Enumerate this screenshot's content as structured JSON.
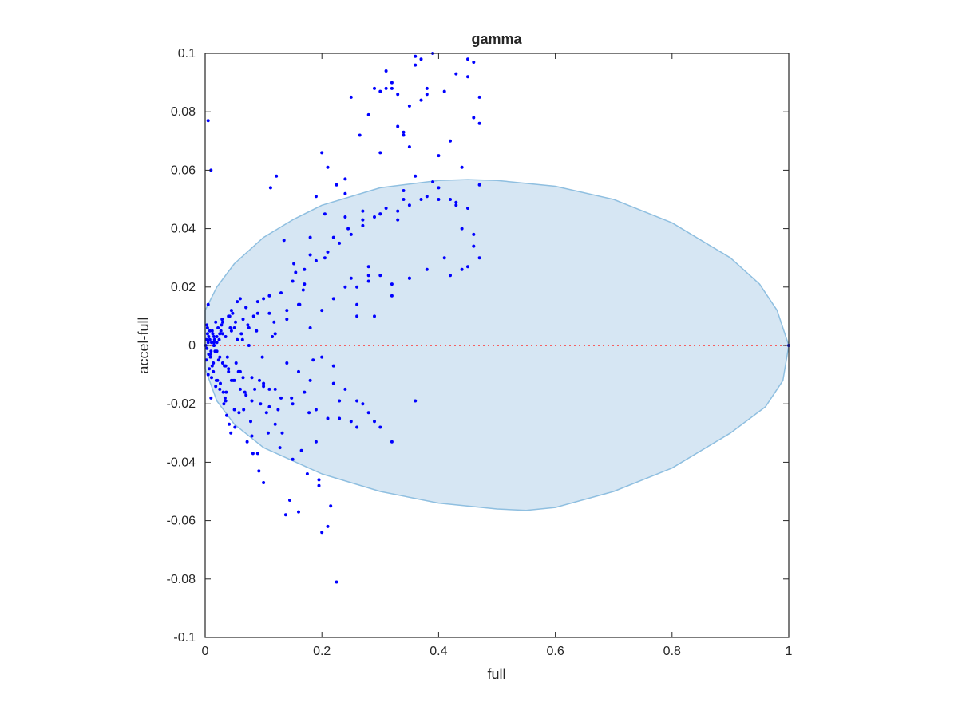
{
  "chart_data": {
    "type": "scatter",
    "title": "gamma",
    "xlabel": "full",
    "ylabel": "accel-full",
    "xlim": [
      0,
      1
    ],
    "ylim": [
      -0.1,
      0.1
    ],
    "grid": false,
    "xticks": [
      0,
      0.2,
      0.4,
      0.6,
      0.8,
      1
    ],
    "xtick_labels": [
      "0",
      "0.2",
      "0.4",
      "0.6",
      "0.8",
      "1"
    ],
    "yticks": [
      -0.1,
      -0.08,
      -0.06,
      -0.04,
      -0.02,
      0,
      0.02,
      0.04,
      0.06,
      0.08,
      0.1
    ],
    "ytick_labels": [
      "-0.1",
      "-0.08",
      "-0.06",
      "-0.04",
      "-0.02",
      "0",
      "0.02",
      "0.04",
      "0.06",
      "0.08",
      "0.1"
    ],
    "colors": {
      "points": "#0000ff",
      "reference_line": "#ff3333",
      "ellipse_fill": "#d6e6f3",
      "ellipse_edge": "#8fbfe0",
      "axes": "#262626"
    },
    "reference_line": {
      "y": 0,
      "x_range": [
        0,
        1
      ],
      "style": "dotted"
    },
    "ellipse": {
      "points": [
        [
          0.0,
          0.012
        ],
        [
          0.02,
          0.02
        ],
        [
          0.05,
          0.028
        ],
        [
          0.1,
          0.037
        ],
        [
          0.15,
          0.043
        ],
        [
          0.2,
          0.048
        ],
        [
          0.3,
          0.054
        ],
        [
          0.4,
          0.0565
        ],
        [
          0.45,
          0.0568
        ],
        [
          0.5,
          0.0565
        ],
        [
          0.6,
          0.0545
        ],
        [
          0.7,
          0.05
        ],
        [
          0.8,
          0.042
        ],
        [
          0.9,
          0.03
        ],
        [
          0.95,
          0.021
        ],
        [
          0.98,
          0.012
        ],
        [
          1.0,
          0.0
        ],
        [
          0.99,
          -0.012
        ],
        [
          0.96,
          -0.021
        ],
        [
          0.9,
          -0.03
        ],
        [
          0.8,
          -0.042
        ],
        [
          0.7,
          -0.05
        ],
        [
          0.6,
          -0.0555
        ],
        [
          0.55,
          -0.0565
        ],
        [
          0.5,
          -0.056
        ],
        [
          0.4,
          -0.054
        ],
        [
          0.3,
          -0.05
        ],
        [
          0.2,
          -0.044
        ],
        [
          0.1,
          -0.035
        ],
        [
          0.05,
          -0.027
        ],
        [
          0.02,
          -0.019
        ],
        [
          0.0,
          -0.008
        ]
      ]
    },
    "series": [
      {
        "x": [
          0.001,
          0.002,
          0.003,
          0.004,
          0.005,
          0.006,
          0.008,
          0.01,
          0.012,
          0.015,
          0.002,
          0.004,
          0.006,
          0.009,
          0.011,
          0.014,
          0.003,
          0.007,
          0.013,
          0.017,
          0.005,
          0.008,
          0.012,
          0.016,
          0.019,
          0.022,
          0.009,
          0.014,
          0.018,
          0.023,
          0.026,
          0.03,
          0.011,
          0.02,
          0.025,
          0.028,
          0.033,
          0.036,
          0.015,
          0.021,
          0.029,
          0.034,
          0.038,
          0.042,
          0.018,
          0.027,
          0.032,
          0.04,
          0.045,
          0.05,
          0.024,
          0.031,
          0.037,
          0.043,
          0.048,
          0.055,
          0.035,
          0.041,
          0.047,
          0.053,
          0.06,
          0.044,
          0.052,
          0.058,
          0.065,
          0.07,
          0.051,
          0.062,
          0.068,
          0.075,
          0.08,
          0.057,
          0.066,
          0.073,
          0.085,
          0.09,
          0.064,
          0.078,
          0.083,
          0.095,
          0.1,
          0.072,
          0.088,
          0.093,
          0.105,
          0.11,
          0.082,
          0.098,
          0.108,
          0.115,
          0.12,
          0.092,
          0.11,
          0.118,
          0.128,
          0.135,
          0.1,
          0.125,
          0.14,
          0.145,
          0.15,
          0.112,
          0.132,
          0.155,
          0.16,
          0.165,
          0.122,
          0.148,
          0.17,
          0.175,
          0.18,
          0.138,
          0.162,
          0.185,
          0.19,
          0.195,
          0.152,
          0.178,
          0.2,
          0.205,
          0.21,
          0.168,
          0.19,
          0.215,
          0.22,
          0.225,
          0.18,
          0.2,
          0.23,
          0.24,
          0.25,
          0.195,
          0.21,
          0.245,
          0.26,
          0.265,
          0.205,
          0.225,
          0.27,
          0.28,
          0.29,
          0.3,
          0.31,
          0.32,
          0.33,
          0.34,
          0.35,
          0.36,
          0.37,
          0.38,
          0.39,
          0.41,
          0.43,
          0.44,
          0.45,
          0.46,
          0.47,
          0.31,
          0.33,
          0.35,
          0.37,
          0.4,
          0.42,
          0.44,
          0.46,
          0.3,
          0.32,
          0.34,
          0.36,
          0.38,
          0.42,
          0.45,
          0.47,
          0.005,
          0.01,
          0.015,
          0.02,
          0.025,
          0.03,
          0.035,
          0.04,
          0.045,
          0.05,
          0.055,
          0.06,
          0.065,
          0.07,
          0.075,
          0.08,
          0.09,
          0.1,
          0.11,
          0.12,
          0.13,
          0.14,
          0.15,
          0.16,
          0.17,
          0.18,
          0.19,
          0.2,
          0.21,
          0.22,
          0.23,
          0.24,
          0.25,
          0.26,
          0.27,
          0.28,
          0.29,
          0.005,
          0.01,
          0.015,
          0.02,
          0.025,
          0.03,
          0.035,
          0.04,
          0.045,
          0.05,
          0.06,
          0.07,
          0.08,
          0.09,
          0.1,
          0.11,
          0.12,
          0.13,
          0.14,
          0.15,
          0.16,
          0.17,
          0.18,
          0.19,
          0.2,
          0.21,
          0.22,
          0.23,
          0.24,
          0.25,
          0.26,
          0.27,
          0.28,
          0.29,
          0.3,
          0.31,
          0.32,
          0.34,
          0.35,
          0.36,
          0.25,
          0.28,
          0.3,
          0.33,
          0.35,
          0.38,
          0.4,
          0.43,
          0.45,
          0.47,
          0.24,
          0.26,
          0.28,
          0.3,
          0.32,
          0.34,
          0.36,
          0.39,
          0.41,
          0.44,
          0.46,
          0.22,
          0.24,
          0.27,
          0.3,
          0.33,
          0.37,
          0.4,
          0.43,
          0.46,
          0.26,
          0.29,
          0.32,
          0.35,
          0.38,
          0.42,
          0.45,
          0.47,
          1.0
        ],
        "y": [
          0.0,
          0.002,
          -0.001,
          0.004,
          0.001,
          -0.003,
          0.002,
          -0.002,
          0.005,
          0.0,
          -0.005,
          0.006,
          0.003,
          -0.004,
          0.001,
          -0.006,
          0.007,
          -0.008,
          0.004,
          -0.002,
          -0.01,
          0.005,
          -0.007,
          0.002,
          -0.012,
          0.006,
          -0.003,
          -0.009,
          0.008,
          -0.005,
          -0.013,
          0.004,
          -0.011,
          0.001,
          -0.015,
          0.007,
          -0.007,
          -0.016,
          0.003,
          -0.012,
          0.009,
          -0.018,
          -0.004,
          0.01,
          -0.014,
          0.005,
          -0.02,
          -0.009,
          0.012,
          -0.022,
          0.002,
          -0.016,
          -0.024,
          0.006,
          -0.012,
          0.015,
          -0.019,
          -0.027,
          0.011,
          -0.006,
          0.016,
          -0.03,
          0.008,
          -0.023,
          -0.011,
          0.013,
          -0.028,
          0.004,
          -0.016,
          0.0,
          -0.031,
          -0.009,
          -0.022,
          0.007,
          -0.015,
          -0.037,
          0.002,
          -0.026,
          0.01,
          -0.02,
          0.016,
          -0.033,
          0.005,
          -0.012,
          -0.023,
          0.011,
          -0.037,
          -0.004,
          -0.03,
          0.003,
          -0.027,
          -0.043,
          -0.015,
          0.008,
          -0.035,
          0.036,
          -0.047,
          -0.022,
          0.012,
          -0.053,
          -0.039,
          0.054,
          -0.03,
          0.025,
          -0.057,
          -0.036,
          0.058,
          -0.018,
          0.021,
          -0.044,
          0.037,
          -0.058,
          0.014,
          -0.005,
          0.051,
          -0.048,
          0.028,
          -0.023,
          -0.064,
          0.045,
          -0.062,
          0.019,
          -0.033,
          -0.055,
          -0.013,
          -0.081,
          0.031,
          0.066,
          -0.025,
          0.057,
          0.085,
          -0.046,
          0.061,
          0.04,
          -0.028,
          0.072,
          0.03,
          0.055,
          0.043,
          0.079,
          0.088,
          0.087,
          0.094,
          0.088,
          0.075,
          0.072,
          0.082,
          0.096,
          0.098,
          0.088,
          0.1,
          0.087,
          0.093,
          0.04,
          0.098,
          0.097,
          0.076,
          0.088,
          0.086,
          0.068,
          0.084,
          0.065,
          0.05,
          0.061,
          0.078,
          0.066,
          0.09,
          0.073,
          0.099,
          0.086,
          0.07,
          0.092,
          0.085,
          0.077,
          0.06,
          0.001,
          -0.002,
          0.004,
          -0.006,
          0.003,
          -0.008,
          0.005,
          -0.012,
          0.002,
          -0.015,
          0.009,
          -0.017,
          0.006,
          -0.019,
          0.011,
          -0.014,
          -0.021,
          0.004,
          -0.018,
          0.009,
          -0.02,
          0.014,
          -0.016,
          0.006,
          -0.022,
          0.012,
          -0.025,
          0.016,
          -0.019,
          0.02,
          -0.026,
          0.01,
          -0.02,
          0.024,
          -0.026,
          0.014,
          -0.018,
          0.0,
          0.003,
          -0.004,
          0.008,
          -0.007,
          0.01,
          -0.012,
          0.006,
          -0.009,
          0.013,
          -0.011,
          0.015,
          -0.013,
          0.017,
          -0.015,
          0.018,
          -0.006,
          0.022,
          -0.009,
          0.026,
          -0.012,
          0.029,
          -0.004,
          0.032,
          -0.007,
          0.035,
          -0.015,
          0.038,
          -0.019,
          0.041,
          -0.023,
          0.044,
          -0.028,
          0.047,
          -0.033,
          0.05,
          0.023,
          -0.019,
          0.023,
          0.027,
          0.045,
          0.043,
          0.048,
          0.051,
          0.054,
          0.049,
          0.047,
          0.055,
          0.052,
          0.02,
          0.022,
          0.024,
          0.021,
          0.053,
          0.058,
          0.056,
          0.03,
          0.026,
          0.034,
          0.037,
          0.044,
          0.046,
          0.045,
          0.046,
          0.05,
          0.05,
          0.048,
          0.038,
          0.014,
          0.01,
          0.017,
          0.023,
          0.026,
          0.024,
          0.027,
          0.03,
          0.0
        ]
      }
    ]
  }
}
